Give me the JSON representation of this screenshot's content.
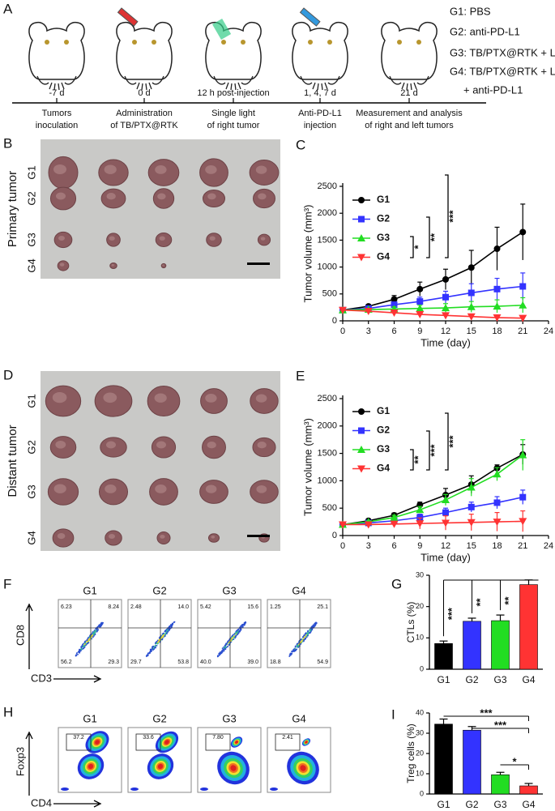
{
  "panel_a": {
    "label": "A",
    "steps": [
      {
        "day": "-7 d",
        "caption": [
          "Tumors",
          "inoculation"
        ]
      },
      {
        "day": "0 d",
        "caption": [
          "Administration",
          "of TB/PTX@RTK"
        ]
      },
      {
        "day": "12 h post-injection",
        "caption": [
          "Single light",
          "of right tumor"
        ]
      },
      {
        "day": "1, 4, 7 d",
        "caption": [
          "Anti-PD-L1",
          "injection"
        ]
      },
      {
        "day": "21 d",
        "caption": [
          "Measurement and analysis",
          "of right and left tumors"
        ]
      }
    ],
    "legend": [
      "G1: PBS",
      "G2: anti-PD-L1",
      "G3: TB/PTX@RTK + L",
      "G4: TB/PTX@RTK + L",
      "+ anti-PD-L1"
    ]
  },
  "panel_b": {
    "label": "B",
    "side_label": "Primary tumor",
    "rows": [
      "G1",
      "G2",
      "G3",
      "G4"
    ]
  },
  "panel_d": {
    "label": "D",
    "side_label": "Distant tumor",
    "rows": [
      "G1",
      "G2",
      "G3",
      "G4"
    ]
  },
  "chart_data": [
    {
      "type": "line",
      "label": "C",
      "xlabel": "Time (day)",
      "ylabel": "Tumor volume (mm³)",
      "x": [
        0,
        3,
        6,
        9,
        12,
        15,
        18,
        21
      ],
      "xlim": [
        0,
        24
      ],
      "xticks": [
        0,
        3,
        6,
        9,
        12,
        15,
        18,
        21,
        24
      ],
      "ylim": [
        0,
        2500
      ],
      "yticks": [
        0,
        500,
        1000,
        1500,
        2000,
        2500
      ],
      "series": [
        {
          "name": "G1",
          "color": "#000000",
          "marker": "circle",
          "values": [
            200,
            270,
            400,
            590,
            770,
            990,
            1340,
            1650
          ],
          "errors": [
            0,
            30,
            70,
            130,
            190,
            320,
            400,
            520
          ]
        },
        {
          "name": "G2",
          "color": "#3333ff",
          "marker": "square",
          "values": [
            200,
            230,
            300,
            360,
            440,
            520,
            590,
            640
          ],
          "errors": [
            0,
            20,
            50,
            80,
            110,
            170,
            200,
            250
          ]
        },
        {
          "name": "G3",
          "color": "#22dd22",
          "marker": "triangle-up",
          "values": [
            200,
            210,
            220,
            230,
            240,
            260,
            270,
            290
          ],
          "errors": [
            0,
            20,
            40,
            60,
            80,
            100,
            120,
            140
          ]
        },
        {
          "name": "G4",
          "color": "#ff3333",
          "marker": "triangle-down",
          "values": [
            200,
            180,
            150,
            120,
            100,
            80,
            60,
            50
          ],
          "errors": [
            0,
            20,
            30,
            40,
            40,
            40,
            40,
            30
          ]
        }
      ],
      "annotations": [
        "*",
        "**",
        "***"
      ]
    },
    {
      "type": "line",
      "label": "E",
      "xlabel": "Time (day)",
      "ylabel": "Tumor volume (mm³)",
      "x": [
        0,
        3,
        6,
        9,
        12,
        15,
        18,
        21
      ],
      "xlim": [
        0,
        24
      ],
      "xticks": [
        0,
        3,
        6,
        9,
        12,
        15,
        18,
        21,
        24
      ],
      "ylim": [
        0,
        2500
      ],
      "yticks": [
        0,
        500,
        1000,
        1500,
        2000,
        2500
      ],
      "series": [
        {
          "name": "G1",
          "color": "#000000",
          "marker": "circle",
          "values": [
            200,
            270,
            370,
            560,
            740,
            930,
            1230,
            1480
          ],
          "errors": [
            0,
            30,
            40,
            50,
            120,
            160,
            60,
            180
          ]
        },
        {
          "name": "G2",
          "color": "#3333ff",
          "marker": "square",
          "values": [
            200,
            230,
            270,
            330,
            420,
            520,
            600,
            700
          ],
          "errors": [
            0,
            20,
            40,
            60,
            80,
            90,
            110,
            130
          ]
        },
        {
          "name": "G3",
          "color": "#22dd22",
          "marker": "triangle-up",
          "values": [
            200,
            250,
            330,
            470,
            650,
            880,
            1120,
            1470
          ],
          "errors": [
            0,
            20,
            40,
            60,
            100,
            160,
            120,
            280
          ]
        },
        {
          "name": "G4",
          "color": "#ff3333",
          "marker": "triangle-down",
          "values": [
            200,
            200,
            210,
            220,
            230,
            240,
            250,
            260
          ],
          "errors": [
            0,
            20,
            50,
            100,
            130,
            150,
            170,
            190
          ]
        }
      ],
      "annotations": [
        "**",
        "***",
        "***"
      ]
    },
    {
      "type": "bar",
      "label": "G",
      "ylabel": "CTLs (%)",
      "categories": [
        "G1",
        "G2",
        "G3",
        "G4"
      ],
      "colors": [
        "#000000",
        "#3333ff",
        "#22dd22",
        "#ff3333"
      ],
      "values": [
        8.2,
        15.3,
        15.5,
        27
      ],
      "errors": [
        0.8,
        1,
        1.8,
        1.5
      ],
      "ylim": [
        0,
        30
      ],
      "yticks": [
        0,
        10,
        20,
        30
      ],
      "annotations": [
        "***",
        "**",
        "**"
      ]
    },
    {
      "type": "bar",
      "label": "I",
      "ylabel": "Treg cells (%)",
      "categories": [
        "G1",
        "G2",
        "G3",
        "G4"
      ],
      "colors": [
        "#000000",
        "#3333ff",
        "#22dd22",
        "#ff3333"
      ],
      "values": [
        34.5,
        31.5,
        9.5,
        4
      ],
      "errors": [
        2.5,
        1.8,
        1.2,
        1.2
      ],
      "ylim": [
        0,
        40
      ],
      "yticks": [
        0,
        10,
        20,
        30,
        40
      ],
      "annotations": [
        "***",
        "***",
        "*"
      ]
    }
  ],
  "panel_f": {
    "label": "F",
    "xlabel": "CD3",
    "ylabel": "CD8",
    "plots": [
      {
        "name": "G1",
        "quadrants": [
          "6.23",
          "8.24",
          "56.2",
          "29.3"
        ]
      },
      {
        "name": "G2",
        "quadrants": [
          "2.48",
          "14.0",
          "29.7",
          "53.8"
        ]
      },
      {
        "name": "G3",
        "quadrants": [
          "5.42",
          "15.6",
          "40.0",
          "39.0"
        ]
      },
      {
        "name": "G4",
        "quadrants": [
          "1.25",
          "25.1",
          "18.8",
          "54.9"
        ]
      }
    ]
  },
  "panel_h": {
    "label": "H",
    "xlabel": "CD4",
    "ylabel": "Foxp3",
    "plots": [
      {
        "name": "G1",
        "gate": "37.2"
      },
      {
        "name": "G2",
        "gate": "33.6"
      },
      {
        "name": "G3",
        "gate": "7.80"
      },
      {
        "name": "G4",
        "gate": "2.41"
      }
    ]
  }
}
